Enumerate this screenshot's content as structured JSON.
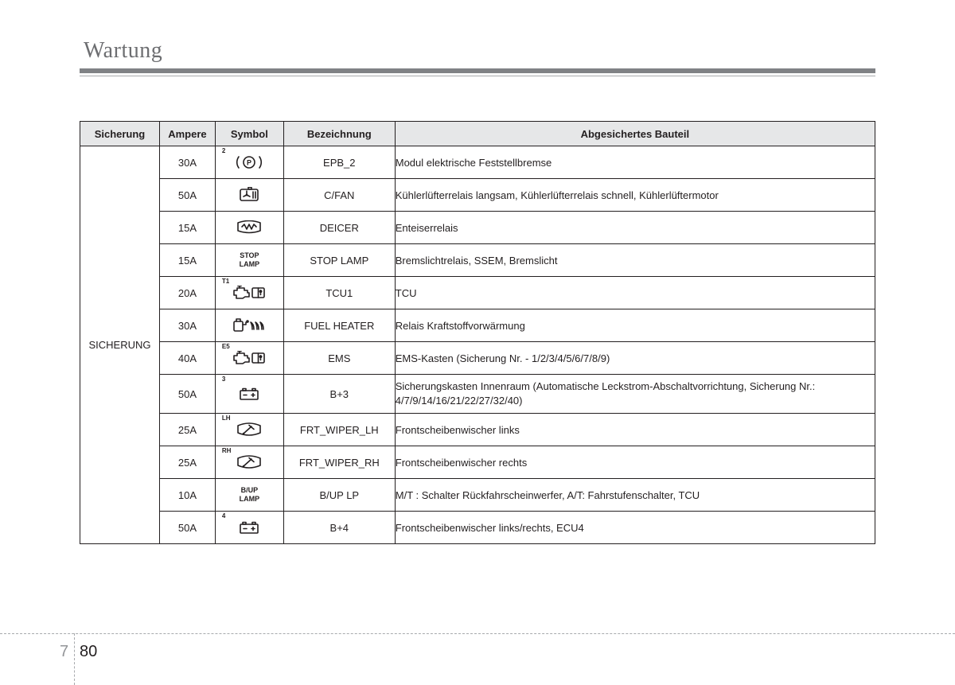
{
  "page": {
    "heading": "Wartung",
    "section_number": "7",
    "page_number": "80"
  },
  "table": {
    "headers": {
      "col1": "Sicherung",
      "col2": "Ampere",
      "col3": "Symbol",
      "col4": "Bezeichnung",
      "col5": "Abgesichertes Bauteil"
    },
    "row_label": "SICHERUNG",
    "rows": [
      {
        "ampere": "30A",
        "symbol_sup": "2",
        "symbol_type": "epb",
        "designation": "EPB_2",
        "description": "Modul elektrische Feststellbremse"
      },
      {
        "ampere": "50A",
        "symbol_sup": "",
        "symbol_type": "fan",
        "designation": "C/FAN",
        "description": "Kühlerlüfterrelais langsam, Kühlerlüfterrelais schnell, Kühlerlüftermotor"
      },
      {
        "ampere": "15A",
        "symbol_sup": "",
        "symbol_type": "deicer",
        "designation": "DEICER",
        "description": "Enteiserrelais"
      },
      {
        "ampere": "15A",
        "symbol_sup": "",
        "symbol_type": "text",
        "symbol_text1": "STOP",
        "symbol_text2": "LAMP",
        "designation": "STOP LAMP",
        "description": "Bremslichtrelais, SSEM, Bremslicht"
      },
      {
        "ampere": "20A",
        "symbol_sup": "T1",
        "symbol_type": "engine_book",
        "designation": "TCU1",
        "description": "TCU"
      },
      {
        "ampere": "30A",
        "symbol_sup": "",
        "symbol_type": "fuel_heater",
        "designation": "FUEL HEATER",
        "description": "Relais Kraftstoffvorwärmung"
      },
      {
        "ampere": "40A",
        "symbol_sup": "E5",
        "symbol_type": "engine_book",
        "designation": "EMS",
        "description": "EMS-Kasten (Sicherung Nr. - 1/2/3/4/5/6/7/8/9)"
      },
      {
        "ampere": "50A",
        "symbol_sup": "3",
        "symbol_type": "battery",
        "designation": "B+3",
        "description": "Sicherungskasten Innenraum (Automatische Leckstrom-Abschaltvorrichtung, Sicherung Nr.: 4/7/9/14/16/21/22/27/32/40)"
      },
      {
        "ampere": "25A",
        "symbol_sup": "LH",
        "symbol_type": "wiper",
        "designation": "FRT_WIPER_LH",
        "description": "Frontscheibenwischer links"
      },
      {
        "ampere": "25A",
        "symbol_sup": "RH",
        "symbol_type": "wiper",
        "designation": "FRT_WIPER_RH",
        "description": "Frontscheibenwischer rechts"
      },
      {
        "ampere": "10A",
        "symbol_sup": "",
        "symbol_type": "text",
        "symbol_text1": "B/UP",
        "symbol_text2": "LAMP",
        "designation": "B/UP LP",
        "description": "M/T : Schalter Rückfahrscheinwerfer, A/T: Fahrstufenschalter, TCU"
      },
      {
        "ampere": "50A",
        "symbol_sup": "4",
        "symbol_type": "battery",
        "designation": "B+4",
        "description": "Frontscheibenwischer links/rechts, ECU4"
      }
    ]
  },
  "style": {
    "heading_color": "#6d6e71",
    "rule_thick_color": "#808285",
    "rule_thin_color": "#a7a9ac",
    "header_bg": "#e6e7e8",
    "border_color": "#231f20",
    "text_color": "#231f20",
    "font_size_body": 13,
    "font_size_heading": 28
  }
}
